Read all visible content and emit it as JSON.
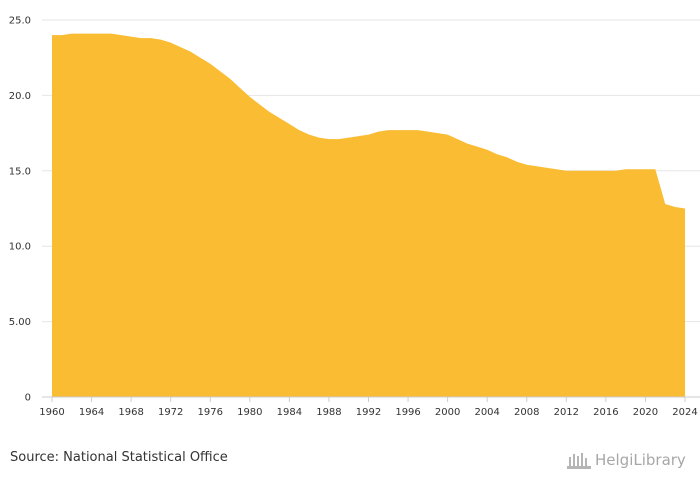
{
  "chart_data": {
    "type": "area",
    "title": "",
    "xlabel": "",
    "ylabel": "",
    "ylim": [
      0,
      25
    ],
    "xlim": [
      1960,
      2024
    ],
    "y_ticks": [
      "0",
      "5.00",
      "10.0",
      "15.0",
      "20.0",
      "25.0"
    ],
    "y_tick_values": [
      0,
      5,
      10,
      15,
      20,
      25
    ],
    "x_ticks": [
      "1960",
      "1964",
      "1968",
      "1972",
      "1976",
      "1980",
      "1984",
      "1988",
      "1992",
      "1996",
      "2000",
      "2004",
      "2008",
      "2012",
      "2016",
      "2020",
      "2024"
    ],
    "grid": true,
    "fill_color": "#f9bc33",
    "series": [
      {
        "name": "value",
        "x": [
          1960,
          1961,
          1962,
          1963,
          1964,
          1965,
          1966,
          1967,
          1968,
          1969,
          1970,
          1971,
          1972,
          1973,
          1974,
          1975,
          1976,
          1977,
          1978,
          1979,
          1980,
          1981,
          1982,
          1983,
          1984,
          1985,
          1986,
          1987,
          1988,
          1989,
          1990,
          1991,
          1992,
          1993,
          1994,
          1995,
          1996,
          1997,
          1998,
          1999,
          2000,
          2001,
          2002,
          2003,
          2004,
          2005,
          2006,
          2007,
          2008,
          2009,
          2010,
          2011,
          2012,
          2013,
          2014,
          2015,
          2016,
          2017,
          2018,
          2019,
          2020,
          2021,
          2022,
          2023,
          2024
        ],
        "values": [
          24.0,
          24.0,
          24.1,
          24.1,
          24.1,
          24.1,
          24.1,
          24.0,
          23.9,
          23.8,
          23.8,
          23.7,
          23.5,
          23.2,
          22.9,
          22.5,
          22.1,
          21.6,
          21.1,
          20.5,
          19.9,
          19.4,
          18.9,
          18.5,
          18.1,
          17.7,
          17.4,
          17.2,
          17.1,
          17.1,
          17.2,
          17.3,
          17.4,
          17.6,
          17.7,
          17.7,
          17.7,
          17.7,
          17.6,
          17.5,
          17.4,
          17.1,
          16.8,
          16.6,
          16.4,
          16.1,
          15.9,
          15.6,
          15.4,
          15.3,
          15.2,
          15.1,
          15.0,
          15.0,
          15.0,
          15.0,
          15.0,
          15.0,
          15.1,
          15.1,
          15.1,
          15.1,
          12.8,
          12.6,
          12.5
        ]
      }
    ]
  },
  "footer": {
    "source": "Source: National Statistical Office",
    "logo_text": "HelgiLibrary"
  }
}
